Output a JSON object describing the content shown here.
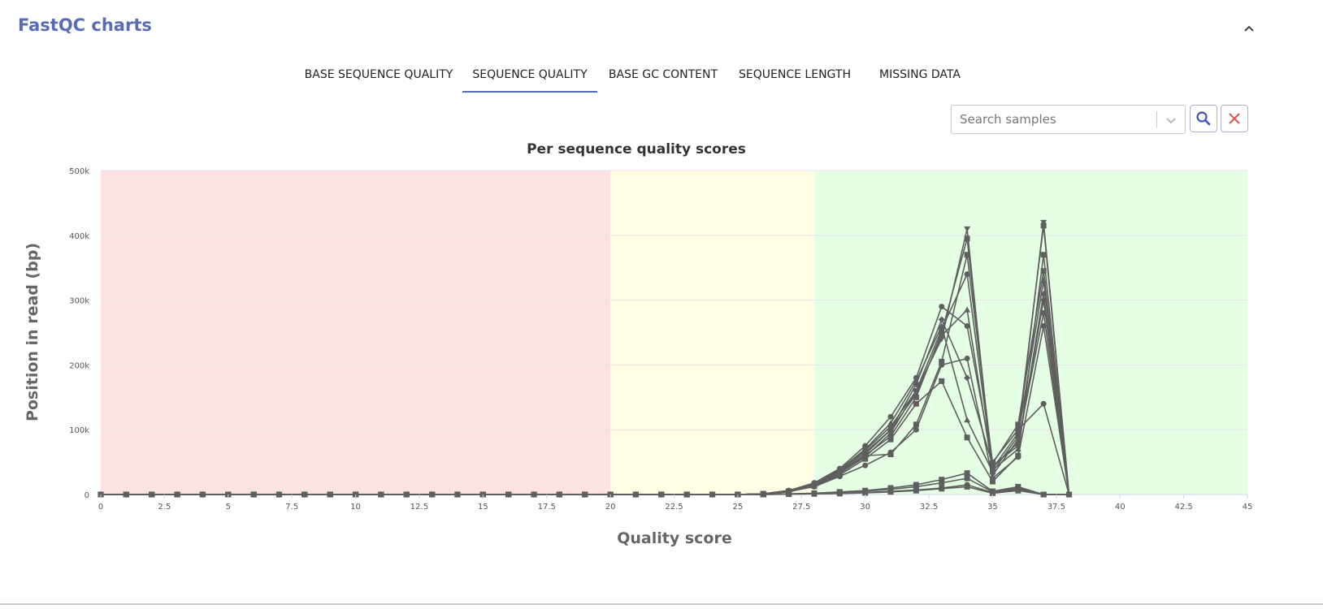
{
  "panel": {
    "title": "FastQC charts",
    "collapse_icon": "chevron-up-icon"
  },
  "tabs": [
    {
      "label": "BASE SEQUENCE QUALITY",
      "active": false
    },
    {
      "label": "SEQUENCE QUALITY",
      "active": true
    },
    {
      "label": "BASE GC CONTENT",
      "active": false
    },
    {
      "label": "SEQUENCE LENGTH",
      "active": false
    },
    {
      "label": "MISSING DATA",
      "active": false
    }
  ],
  "search": {
    "placeholder": "Search samples",
    "value": ""
  },
  "colors": {
    "accent": "#5a6bb5",
    "clear": "#d9534f",
    "series": "#5f5f5f",
    "fail_band": "#fde2e2",
    "warn_band": "#feffe4",
    "pass_band": "#e5ffe5"
  },
  "chart_data": {
    "type": "line",
    "title": "Per sequence quality scores",
    "xlabel": "Quality score",
    "ylabel": "Position in read (bp)",
    "xlim": [
      0,
      45
    ],
    "ylim": [
      0,
      500000
    ],
    "xticks": [
      0,
      2.5,
      5,
      7.5,
      10,
      12.5,
      15,
      17.5,
      20,
      22.5,
      25,
      27.5,
      30,
      32.5,
      35,
      37.5,
      40,
      42.5,
      45
    ],
    "xtick_labels": [
      "0",
      "2.5",
      "5",
      "7.5",
      "10",
      "12.5",
      "15",
      "17.5",
      "20",
      "22.5",
      "25",
      "27.5",
      "30",
      "32.5",
      "35",
      "37.5",
      "40",
      "42.5",
      "45"
    ],
    "yticks": [
      0,
      100000,
      200000,
      300000,
      400000,
      500000
    ],
    "ytick_labels": [
      "0",
      "100k",
      "200k",
      "300k",
      "400k",
      "500k"
    ],
    "grid": true,
    "bands": [
      {
        "from": 0,
        "to": 20,
        "status": "fail"
      },
      {
        "from": 20,
        "to": 28,
        "status": "warn"
      },
      {
        "from": 28,
        "to": 45,
        "status": "pass"
      }
    ],
    "x": [
      0,
      1,
      2,
      3,
      4,
      5,
      6,
      7,
      8,
      9,
      10,
      11,
      12,
      13,
      14,
      15,
      16,
      17,
      18,
      19,
      20,
      21,
      22,
      23,
      24,
      25,
      26,
      27,
      28,
      29,
      30,
      31,
      32,
      33,
      34,
      35,
      36,
      37,
      38
    ],
    "series": [
      {
        "marker": "circle",
        "values": [
          0,
          0,
          0,
          0,
          0,
          0,
          0,
          0,
          0,
          0,
          0,
          0,
          0,
          0,
          0,
          0,
          0,
          0,
          0,
          0,
          0,
          0,
          0,
          0,
          0,
          0,
          1000,
          6000,
          18000,
          40000,
          75000,
          120000,
          180000,
          290000,
          260000,
          50000,
          100000,
          140000,
          0
        ]
      },
      {
        "marker": "square",
        "values": [
          0,
          0,
          0,
          0,
          0,
          0,
          0,
          0,
          0,
          0,
          0,
          0,
          0,
          0,
          0,
          0,
          0,
          0,
          0,
          0,
          0,
          0,
          0,
          0,
          0,
          0,
          1000,
          5000,
          15000,
          35000,
          60000,
          90000,
          150000,
          250000,
          395000,
          40000,
          95000,
          415000,
          0
        ]
      },
      {
        "marker": "triangle",
        "values": [
          0,
          0,
          0,
          0,
          0,
          0,
          0,
          0,
          0,
          0,
          0,
          0,
          0,
          0,
          0,
          0,
          0,
          0,
          0,
          0,
          0,
          0,
          0,
          0,
          0,
          0,
          1000,
          6000,
          17000,
          38000,
          70000,
          110000,
          175000,
          260000,
          115000,
          35000,
          90000,
          330000,
          0
        ]
      },
      {
        "marker": "triangle-down",
        "values": [
          0,
          0,
          0,
          0,
          0,
          0,
          0,
          0,
          0,
          0,
          0,
          0,
          0,
          0,
          0,
          0,
          0,
          0,
          0,
          0,
          0,
          0,
          0,
          0,
          0,
          0,
          1000,
          5000,
          14000,
          33000,
          58000,
          95000,
          160000,
          240000,
          410000,
          30000,
          85000,
          420000,
          0
        ]
      },
      {
        "marker": "diamond",
        "values": [
          0,
          0,
          0,
          0,
          0,
          0,
          0,
          0,
          0,
          0,
          0,
          0,
          0,
          0,
          0,
          0,
          0,
          0,
          0,
          0,
          0,
          0,
          0,
          0,
          0,
          0,
          1000,
          5000,
          16000,
          36000,
          65000,
          100000,
          170000,
          270000,
          180000,
          45000,
          75000,
          300000,
          0
        ]
      },
      {
        "marker": "square",
        "values": [
          0,
          0,
          0,
          0,
          0,
          0,
          0,
          0,
          0,
          0,
          0,
          0,
          0,
          0,
          0,
          0,
          0,
          0,
          0,
          0,
          0,
          0,
          0,
          0,
          0,
          0,
          1000,
          4000,
          13000,
          30000,
          55000,
          85000,
          140000,
          175000,
          88000,
          20000,
          60000,
          370000,
          0
        ]
      },
      {
        "marker": "circle",
        "values": [
          0,
          0,
          0,
          0,
          0,
          0,
          0,
          0,
          0,
          0,
          0,
          0,
          0,
          0,
          0,
          0,
          0,
          0,
          0,
          0,
          0,
          0,
          0,
          0,
          0,
          0,
          1000,
          6000,
          17000,
          37000,
          68000,
          105000,
          160000,
          255000,
          340000,
          42000,
          80000,
          280000,
          0
        ]
      },
      {
        "marker": "triangle",
        "values": [
          0,
          0,
          0,
          0,
          0,
          0,
          0,
          0,
          0,
          0,
          0,
          0,
          0,
          0,
          0,
          0,
          0,
          0,
          0,
          0,
          0,
          0,
          0,
          0,
          0,
          0,
          1000,
          6000,
          16000,
          34000,
          62000,
          100000,
          155000,
          245000,
          285000,
          38000,
          70000,
          310000,
          0
        ]
      },
      {
        "marker": "square",
        "values": [
          0,
          0,
          0,
          0,
          0,
          0,
          0,
          0,
          0,
          0,
          0,
          0,
          0,
          0,
          0,
          0,
          0,
          0,
          0,
          0,
          0,
          0,
          0,
          0,
          0,
          0,
          1000,
          5000,
          14000,
          32000,
          60000,
          62000,
          108000,
          205000,
          370000,
          48000,
          108000,
          345000,
          0
        ]
      },
      {
        "marker": "circle",
        "values": [
          0,
          0,
          0,
          0,
          0,
          0,
          0,
          0,
          0,
          0,
          0,
          0,
          0,
          0,
          0,
          0,
          0,
          0,
          0,
          0,
          0,
          0,
          0,
          0,
          0,
          0,
          1000,
          5000,
          12000,
          28000,
          45000,
          65000,
          100000,
          200000,
          210000,
          25000,
          58000,
          260000,
          0
        ]
      },
      {
        "marker": "square",
        "values": [
          0,
          0,
          0,
          0,
          0,
          0,
          0,
          0,
          0,
          0,
          0,
          0,
          0,
          0,
          0,
          0,
          0,
          0,
          0,
          0,
          0,
          0,
          0,
          0,
          0,
          0,
          0,
          1000,
          2000,
          4000,
          6000,
          10000,
          15000,
          23000,
          33000,
          5000,
          12000,
          0,
          0
        ]
      },
      {
        "marker": "square",
        "values": [
          0,
          0,
          0,
          0,
          0,
          0,
          0,
          0,
          0,
          0,
          0,
          0,
          0,
          0,
          0,
          0,
          0,
          0,
          0,
          0,
          0,
          0,
          0,
          0,
          0,
          0,
          0,
          1000,
          1500,
          3000,
          5000,
          8000,
          12000,
          18000,
          25000,
          4000,
          10000,
          0,
          0
        ]
      },
      {
        "marker": "circle",
        "values": [
          0,
          0,
          0,
          0,
          0,
          0,
          0,
          0,
          0,
          0,
          0,
          0,
          0,
          0,
          0,
          0,
          0,
          0,
          0,
          0,
          0,
          0,
          0,
          0,
          0,
          0,
          0,
          500,
          1000,
          2000,
          3000,
          5000,
          7000,
          10000,
          15000,
          3000,
          8000,
          0,
          0
        ]
      },
      {
        "marker": "square",
        "values": [
          0,
          0,
          0,
          0,
          0,
          0,
          0,
          0,
          0,
          0,
          0,
          0,
          0,
          0,
          0,
          0,
          0,
          0,
          0,
          0,
          0,
          0,
          0,
          0,
          0,
          0,
          0,
          500,
          1000,
          1500,
          2500,
          4000,
          6000,
          9000,
          12000,
          2000,
          6000,
          0,
          0
        ]
      }
    ]
  }
}
